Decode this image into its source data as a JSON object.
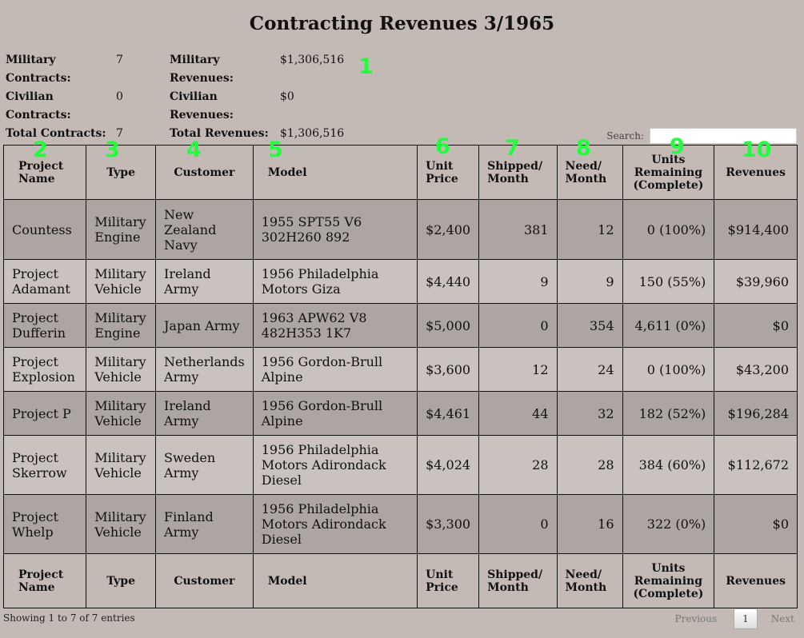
{
  "title": "Contracting Revenues 3/1965",
  "summary": {
    "contracts": [
      {
        "label": "Military Contracts:",
        "value": "7"
      },
      {
        "label": "Civilian Contracts:",
        "value": "0"
      },
      {
        "label": "Total Contracts:",
        "value": "7"
      }
    ],
    "revenues": [
      {
        "label": "Military Revenues:",
        "value": "$1,306,516"
      },
      {
        "label": "Civilian Revenues:",
        "value": "$0"
      },
      {
        "label": "Total Revenues:",
        "value": "$1,306,516"
      }
    ]
  },
  "markers": [
    "1",
    "2",
    "3",
    "4",
    "5",
    "6",
    "7",
    "8",
    "9",
    "10"
  ],
  "search": {
    "label": "Search:",
    "value": ""
  },
  "columns": [
    {
      "l1": "Project",
      "l2": "Name"
    },
    {
      "l1": "Type",
      "l2": ""
    },
    {
      "l1": "Customer",
      "l2": ""
    },
    {
      "l1": "Model",
      "l2": ""
    },
    {
      "l1": "Unit",
      "l2": "Price"
    },
    {
      "l1": "Shipped/",
      "l2": "Month"
    },
    {
      "l1": "Need/",
      "l2": "Month"
    },
    {
      "l1": "Units",
      "l2": "Remaining",
      "l3": "(Complete)"
    },
    {
      "l1": "Revenues",
      "l2": ""
    }
  ],
  "rows": [
    [
      "Countess",
      "Military Engine",
      "New Zealand Navy",
      "1955 SPT55 V6 302H260 892",
      "$2,400",
      "381",
      "12",
      "0 (100%)",
      "$914,400"
    ],
    [
      "Project Adamant",
      "Military Vehicle",
      "Ireland Army",
      "1956 Philadelphia Motors Giza",
      "$4,440",
      "9",
      "9",
      "150 (55%)",
      "$39,960"
    ],
    [
      "Project Dufferin",
      "Military Engine",
      "Japan Army",
      "1963 APW62 V8 482H353 1K7",
      "$5,000",
      "0",
      "354",
      "4,611 (0%)",
      "$0"
    ],
    [
      "Project Explosion",
      "Military Vehicle",
      "Netherlands Army",
      "1956 Gordon-Brull Alpine",
      "$3,600",
      "12",
      "24",
      "0 (100%)",
      "$43,200"
    ],
    [
      "Project P",
      "Military Vehicle",
      "Ireland Army",
      "1956 Gordon-Brull Alpine",
      "$4,461",
      "44",
      "32",
      "182 (52%)",
      "$196,284"
    ],
    [
      "Project Skerrow",
      "Military Vehicle",
      "Sweden Army",
      "1956 Philadelphia Motors Adirondack Diesel",
      "$4,024",
      "28",
      "28",
      "384 (60%)",
      "$112,672"
    ],
    [
      "Project Whelp",
      "Military Vehicle",
      "Finland Army",
      "1956 Philadelphia Motors Adirondack Diesel",
      "$3,300",
      "0",
      "16",
      "322 (0%)",
      "$0"
    ]
  ],
  "footer": {
    "info": "Showing 1 to 7 of 7 entries",
    "previous": "Previous",
    "page": "1",
    "next": "Next"
  }
}
